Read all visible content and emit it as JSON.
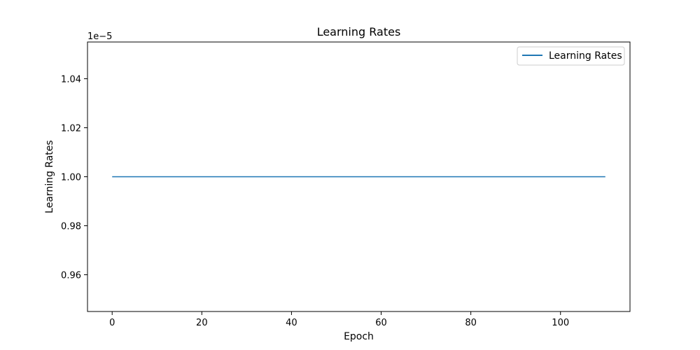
{
  "chart_data": {
    "type": "line",
    "title": "Learning Rates",
    "xlabel": "Epoch",
    "ylabel": "Learning Rates",
    "y_offset_text": "1e−5",
    "xlim": [
      -5.5,
      115.5
    ],
    "ylim": [
      0.945,
      1.055
    ],
    "x_ticks": [
      0,
      20,
      40,
      60,
      80,
      100
    ],
    "x_tick_labels": [
      "0",
      "20",
      "40",
      "60",
      "80",
      "100"
    ],
    "y_ticks": [
      0.96,
      0.98,
      1.0,
      1.02,
      1.04
    ],
    "y_tick_labels": [
      "0.96",
      "0.98",
      "1.00",
      "1.02",
      "1.04"
    ],
    "grid": false,
    "legend": {
      "position": "top-right",
      "entries": [
        "Learning Rates"
      ]
    },
    "series": [
      {
        "name": "Learning Rates",
        "color": "#1f77b4",
        "x": [
          0,
          110
        ],
        "y": [
          1.0,
          1.0
        ]
      }
    ]
  }
}
